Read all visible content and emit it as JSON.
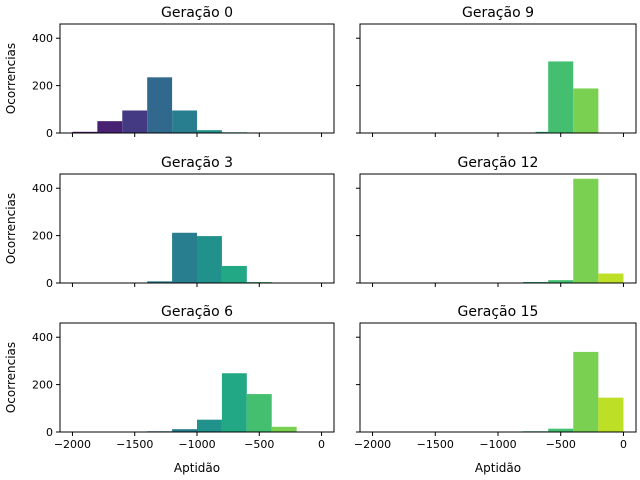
{
  "chart_data": {
    "type": "bar",
    "ylabel": "Ocorrencias",
    "xlabel": "Aptidão",
    "xlim": [
      -2100,
      100
    ],
    "ylim": [
      0,
      460
    ],
    "xticks": [
      -2000,
      -1500,
      -1000,
      -500,
      0
    ],
    "xtick_labels": [
      "−2000",
      "−1500",
      "−1000",
      "−500",
      "0"
    ],
    "yticks": [
      0,
      200,
      400
    ],
    "ytick_labels": [
      "0",
      "200",
      "400"
    ],
    "bin_edges": [
      -2000,
      -1800,
      -1600,
      -1400,
      -1200,
      -1000,
      -800,
      -600,
      -400,
      -200,
      0
    ],
    "bin_colors": [
      "#482173",
      "#471164",
      "#443a83",
      "#39558c",
      "#31688e",
      "#287d8e",
      "#21918c",
      "#22a884",
      "#44bf70",
      "#7ad151",
      "#bddf26"
    ],
    "panels": [
      {
        "title": "Geração 0",
        "bins": [
          {
            "x0": -2000,
            "x1": -1800,
            "count": 5,
            "color": "#471164"
          },
          {
            "x0": -1800,
            "x1": -1600,
            "count": 50,
            "color": "#482173"
          },
          {
            "x0": -1600,
            "x1": -1400,
            "count": 95,
            "color": "#443a83"
          },
          {
            "x0": -1400,
            "x1": -1200,
            "count": 235,
            "color": "#31688e"
          },
          {
            "x0": -1200,
            "x1": -1000,
            "count": 95,
            "color": "#287d8e"
          },
          {
            "x0": -1000,
            "x1": -800,
            "count": 12,
            "color": "#21918c"
          },
          {
            "x0": -800,
            "x1": -600,
            "count": 3,
            "color": "#22a884"
          }
        ]
      },
      {
        "title": "Geração 9",
        "bins": [
          {
            "x0": -700,
            "x1": -600,
            "count": 5,
            "color": "#22a884"
          },
          {
            "x0": -600,
            "x1": -400,
            "count": 302,
            "color": "#44bf70"
          },
          {
            "x0": -400,
            "x1": -200,
            "count": 188,
            "color": "#7ad151"
          }
        ]
      },
      {
        "title": "Geração 3",
        "bins": [
          {
            "x0": -1400,
            "x1": -1200,
            "count": 7,
            "color": "#287d8e"
          },
          {
            "x0": -1200,
            "x1": -1000,
            "count": 212,
            "color": "#287d8e"
          },
          {
            "x0": -1000,
            "x1": -800,
            "count": 198,
            "color": "#21918c"
          },
          {
            "x0": -800,
            "x1": -600,
            "count": 72,
            "color": "#22a884"
          },
          {
            "x0": -600,
            "x1": -400,
            "count": 4,
            "color": "#44bf70"
          }
        ]
      },
      {
        "title": "Geração 12",
        "bins": [
          {
            "x0": -800,
            "x1": -600,
            "count": 4,
            "color": "#22a884"
          },
          {
            "x0": -600,
            "x1": -400,
            "count": 12,
            "color": "#44bf70"
          },
          {
            "x0": -400,
            "x1": -200,
            "count": 440,
            "color": "#7ad151"
          },
          {
            "x0": -200,
            "x1": 0,
            "count": 40,
            "color": "#bddf26"
          }
        ]
      },
      {
        "title": "Geração 6",
        "bins": [
          {
            "x0": -1400,
            "x1": -1200,
            "count": 3,
            "color": "#31688e"
          },
          {
            "x0": -1200,
            "x1": -1000,
            "count": 12,
            "color": "#287d8e"
          },
          {
            "x0": -1000,
            "x1": -800,
            "count": 52,
            "color": "#21918c"
          },
          {
            "x0": -800,
            "x1": -600,
            "count": 248,
            "color": "#22a884"
          },
          {
            "x0": -600,
            "x1": -400,
            "count": 160,
            "color": "#44bf70"
          },
          {
            "x0": -400,
            "x1": -200,
            "count": 22,
            "color": "#7ad151"
          }
        ]
      },
      {
        "title": "Geração 15",
        "bins": [
          {
            "x0": -800,
            "x1": -600,
            "count": 3,
            "color": "#22a884"
          },
          {
            "x0": -600,
            "x1": -400,
            "count": 14,
            "color": "#44bf70"
          },
          {
            "x0": -400,
            "x1": -200,
            "count": 338,
            "color": "#7ad151"
          },
          {
            "x0": -200,
            "x1": 0,
            "count": 145,
            "color": "#bddf26"
          }
        ]
      }
    ]
  }
}
